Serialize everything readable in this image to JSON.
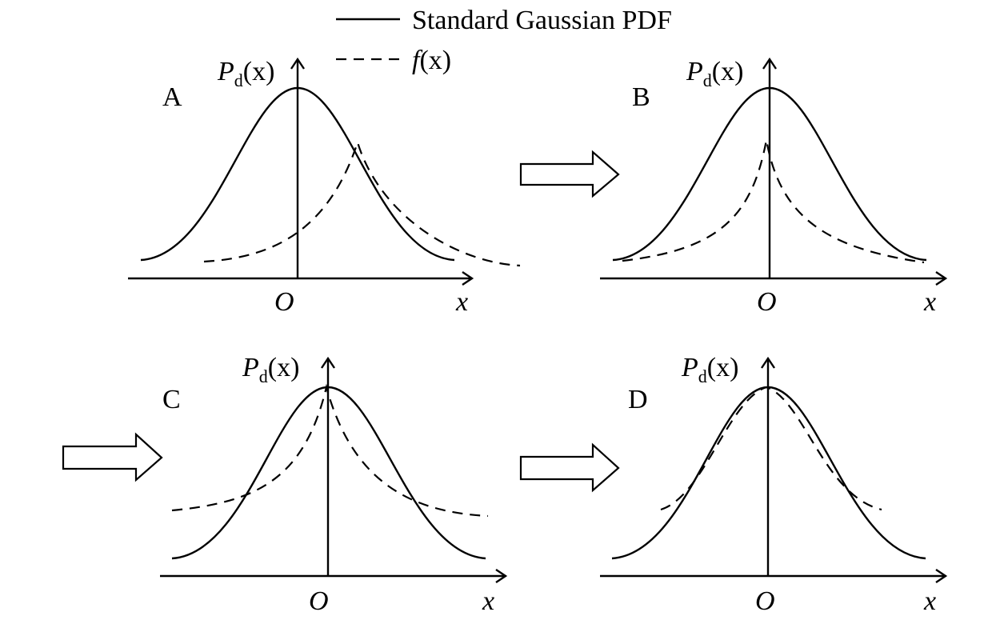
{
  "legend": {
    "solid_label": "Standard Gaussian PDF",
    "dashed_label_fn": "f",
    "dashed_label_arg": "(x)"
  },
  "panels": [
    {
      "id": "A",
      "label": "A",
      "y_label_main": "P",
      "y_label_sub": "d",
      "y_label_arg": "(x)",
      "origin_label": "O",
      "x_label": "x"
    },
    {
      "id": "B",
      "label": "B",
      "y_label_main": "P",
      "y_label_sub": "d",
      "y_label_arg": "(x)",
      "origin_label": "O",
      "x_label": "x"
    },
    {
      "id": "C",
      "label": "C",
      "y_label_main": "P",
      "y_label_sub": "d",
      "y_label_arg": "(x)",
      "origin_label": "O",
      "x_label": "x"
    },
    {
      "id": "D",
      "label": "D",
      "y_label_main": "P",
      "y_label_sub": "d",
      "y_label_arg": "(x)",
      "origin_label": "O",
      "x_label": "x"
    }
  ]
}
